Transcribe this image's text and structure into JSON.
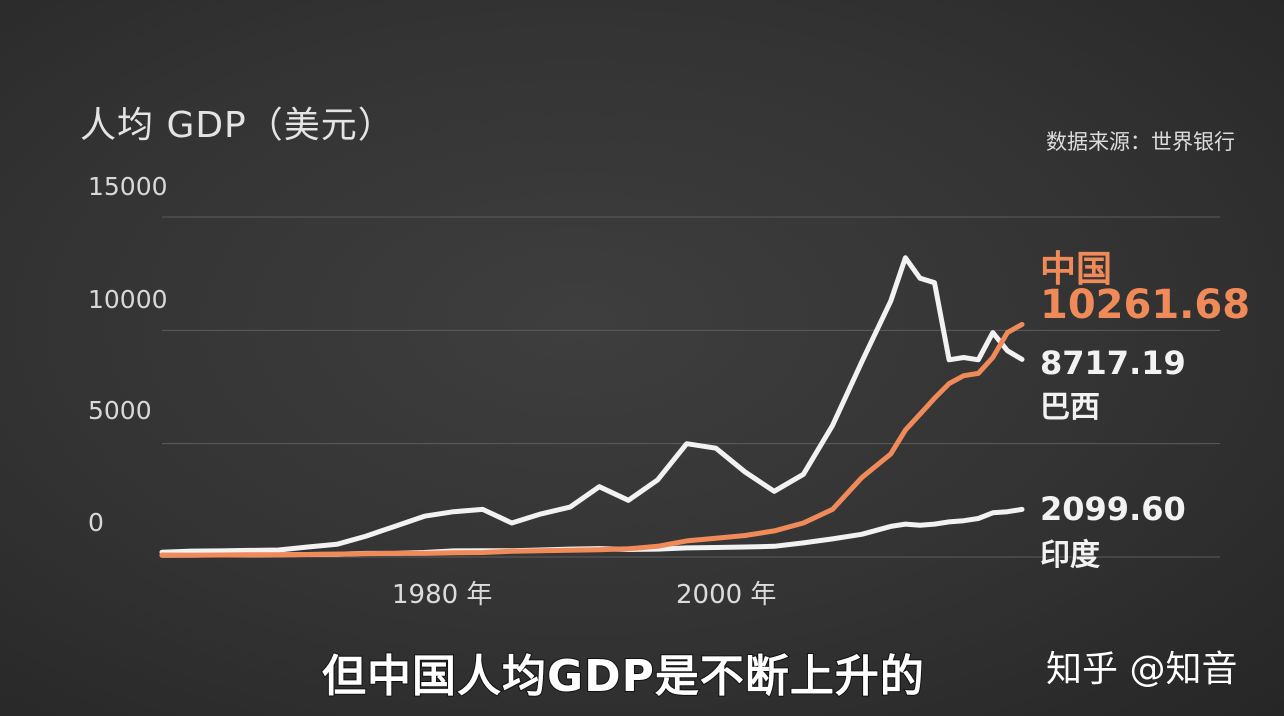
{
  "chart_data": {
    "type": "line",
    "title": "人均 GDP（美元）",
    "source": "数据来源：世界银行",
    "ylim": [
      0,
      15000
    ],
    "yticks": [
      {
        "value": 15000,
        "label": "15000"
      },
      {
        "value": 10000,
        "label": "10000"
      },
      {
        "value": 5000,
        "label": "5000"
      },
      {
        "value": 0,
        "label": "0"
      }
    ],
    "xlim": [
      1960,
      2019
    ],
    "xticks": [
      {
        "value": 1980,
        "label": "1980 年"
      },
      {
        "value": 2000,
        "label": "2000 年"
      }
    ],
    "grid": true,
    "x": [
      1960,
      1962,
      1964,
      1966,
      1968,
      1970,
      1972,
      1974,
      1976,
      1978,
      1980,
      1982,
      1984,
      1986,
      1988,
      1990,
      1992,
      1994,
      1996,
      1998,
      2000,
      2002,
      2004,
      2006,
      2008,
      2010,
      2011,
      2012,
      2013,
      2014,
      2015,
      2016,
      2017,
      2018,
      2019
    ],
    "series": [
      {
        "name": "中国",
        "color": "#f08a58",
        "end_label": "10261.68",
        "values": [
          90,
          80,
          90,
          100,
          95,
          110,
          130,
          150,
          160,
          160,
          190,
          200,
          250,
          280,
          300,
          320,
          360,
          470,
          710,
          830,
          950,
          1150,
          1500,
          2100,
          3500,
          4550,
          5600,
          6300,
          7000,
          7650,
          8000,
          8100,
          8800,
          9900,
          10261.68
        ]
      },
      {
        "name": "巴西",
        "color": "#f2f2f2",
        "end_label": "8717.19",
        "values": [
          210,
          260,
          270,
          290,
          310,
          440,
          560,
          920,
          1360,
          1800,
          2000,
          2100,
          1500,
          1900,
          2200,
          3100,
          2500,
          3400,
          5000,
          4800,
          3750,
          2900,
          3650,
          5800,
          8600,
          11300,
          13200,
          12300,
          12100,
          8700,
          8800,
          8700,
          9900,
          9100,
          8717.19
        ]
      },
      {
        "name": "印度",
        "color": "#f2f2f2",
        "end_label": "2099.60",
        "values": [
          80,
          85,
          100,
          90,
          95,
          110,
          120,
          160,
          160,
          200,
          270,
          280,
          280,
          310,
          350,
          370,
          330,
          350,
          400,
          420,
          440,
          470,
          620,
          800,
          1000,
          1350,
          1450,
          1400,
          1450,
          1550,
          1600,
          1700,
          1950,
          2000,
          2099.6
        ]
      }
    ]
  },
  "caption": "但中国人均GDP是不断上升的",
  "watermark": "知乎 @知音"
}
